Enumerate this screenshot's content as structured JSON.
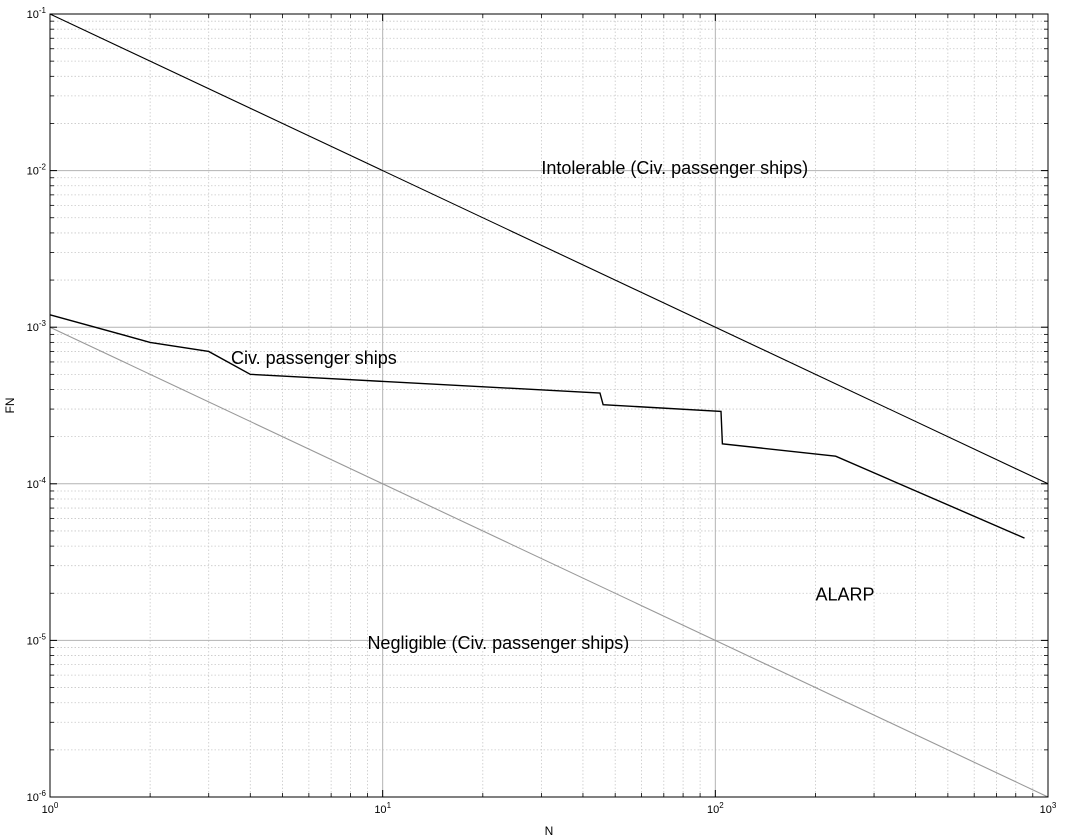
{
  "chart_data": {
    "type": "line",
    "title": "",
    "xlabel": "N",
    "ylabel": "FN",
    "xscale": "log",
    "yscale": "log",
    "xlim": [
      1,
      1000
    ],
    "ylim": [
      1e-06,
      0.1
    ],
    "grid": true,
    "x_ticks": [
      {
        "base": "10",
        "exp": "0"
      },
      {
        "base": "10",
        "exp": "1"
      },
      {
        "base": "10",
        "exp": "2"
      },
      {
        "base": "10",
        "exp": "3"
      }
    ],
    "y_ticks": [
      {
        "base": "10",
        "exp": "-1"
      },
      {
        "base": "10",
        "exp": "-2"
      },
      {
        "base": "10",
        "exp": "-3"
      },
      {
        "base": "10",
        "exp": "-4"
      },
      {
        "base": "10",
        "exp": "-5"
      },
      {
        "base": "10",
        "exp": "-6"
      }
    ],
    "series": [
      {
        "color": "#000000",
        "x": [
          1,
          1000
        ],
        "y": [
          0.1,
          0.0001
        ]
      },
      {
        "color": "#000000",
        "x": [
          1,
          2,
          3,
          4,
          45,
          46,
          104,
          105,
          230,
          850
        ],
        "y": [
          0.0012,
          0.0008,
          0.0007,
          0.0005,
          0.00038,
          0.00032,
          0.00029,
          0.00018,
          0.00015,
          4.5e-05
        ]
      },
      {
        "color": "#999999",
        "x": [
          1,
          1000
        ],
        "y": [
          0.001,
          1e-06
        ]
      }
    ],
    "annotations": [
      {
        "text": "Intolerable (Civ. passenger ships)",
        "x": 30,
        "y": 0.0095
      },
      {
        "text": "Civ. passenger ships",
        "x": 3.5,
        "y": 0.00058
      },
      {
        "text": "ALARP",
        "x": 200,
        "y": 1.8e-05
      },
      {
        "text": "Negligible (Civ. passenger ships)",
        "x": 9,
        "y": 8.8e-06
      }
    ]
  }
}
